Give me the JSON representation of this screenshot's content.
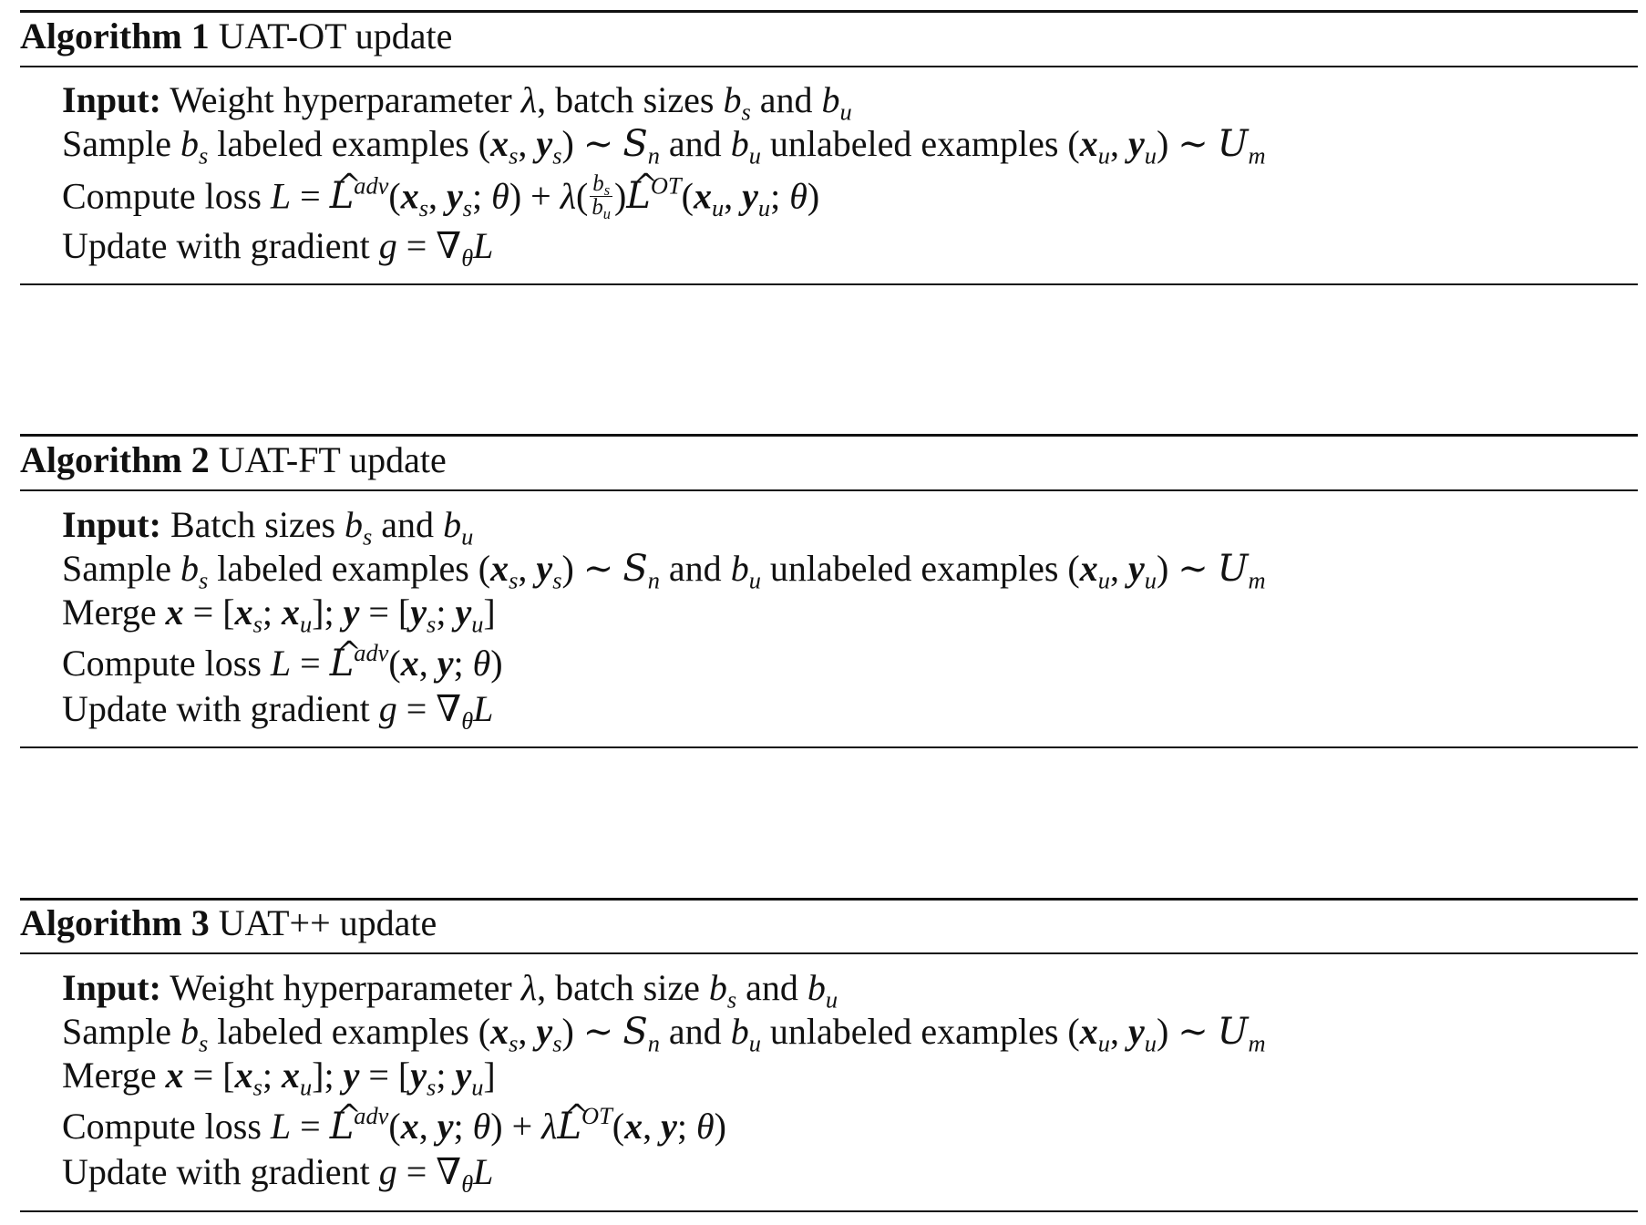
{
  "algorithms": [
    {
      "label": "Algorithm 1",
      "title": "UAT-OT update",
      "input_label": "Input:",
      "input_text": "Weight hyperparameter λ, batch sizes b_s and b_u",
      "lines": {
        "sample": "Sample b_s labeled examples (x_s, y_s) ∼ S_n and b_u unlabeled examples (x_u, y_u) ∼ U_m",
        "loss": "Compute loss L = L̂^adv(x_s, y_s; θ) + λ(b_s/b_u) L̂^OT(x_u, y_u; θ)",
        "update": "Update with gradient g = ∇_θ L"
      }
    },
    {
      "label": "Algorithm 2",
      "title": "UAT-FT update",
      "input_label": "Input:",
      "input_text": "Batch sizes b_s and b_u",
      "lines": {
        "sample": "Sample b_s labeled examples (x_s, y_s) ∼ S_n and b_u unlabeled examples (x_u, y_u) ∼ U_m",
        "merge": "Merge x = [x_s; x_u]; y = [y_s; y_u]",
        "loss": "Compute loss L = L̂^adv(x, y; θ)",
        "update": "Update with gradient g = ∇_θ L"
      }
    },
    {
      "label": "Algorithm 3",
      "title": "UAT++ update",
      "input_label": "Input:",
      "input_text": "Weight hyperparameter λ, batch size b_s and b_u",
      "lines": {
        "sample": "Sample b_s labeled examples (x_s, y_s) ∼ S_n and b_u unlabeled examples (x_u, y_u) ∼ U_m",
        "merge": "Merge x = [x_s; x_u]; y = [y_s; y_u]",
        "loss": "Compute loss L = L̂^adv(x, y; θ) + λ L̂^OT(x, y; θ)",
        "update": "Update with gradient g = ∇_θ L"
      }
    }
  ]
}
